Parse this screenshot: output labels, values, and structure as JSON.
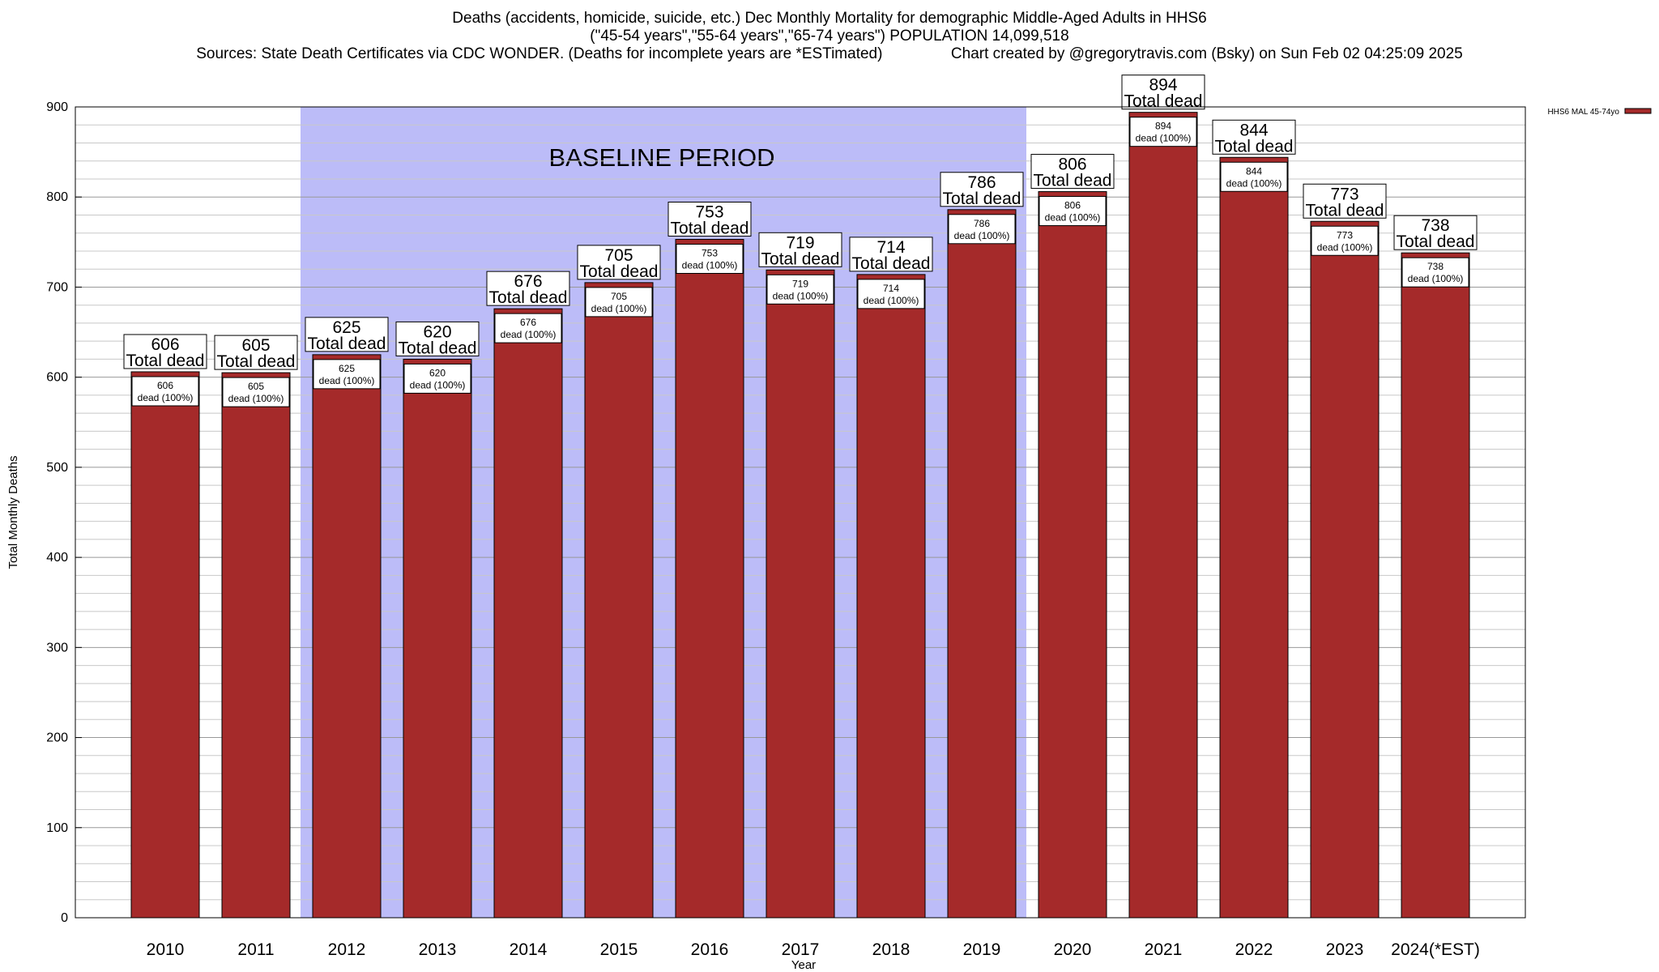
{
  "chart_data": {
    "type": "bar",
    "title_lines": [
      "Deaths (accidents, homicide, suicide, etc.) Dec Monthly Mortality for demographic Middle-Aged Adults in HHS6",
      "(\"45-54 years\",\"55-64 years\",\"65-74 years\") POPULATION 14,099,518"
    ],
    "sources_text": "Sources: State Death Certificates via CDC WONDER. (Deaths for incomplete years are *ESTimated)",
    "credit_text": "Chart created by @gregorytravis.com (Bsky) on Sun Feb 02 04:25:09 2025",
    "xlabel": "Year",
    "ylabel": "Total Monthly Deaths",
    "ylim": [
      0,
      900
    ],
    "yticks": [
      0,
      100,
      200,
      300,
      400,
      500,
      600,
      700,
      800,
      900
    ],
    "categories": [
      "2010",
      "2011",
      "2012",
      "2013",
      "2014",
      "2015",
      "2016",
      "2017",
      "2018",
      "2019",
      "2020",
      "2021",
      "2022",
      "2023",
      "2024(*EST)"
    ],
    "series": [
      {
        "name": "HHS6 MAL 45-74yo",
        "color": "#a52a2a",
        "values": [
          606,
          605,
          625,
          620,
          676,
          705,
          753,
          719,
          714,
          786,
          806,
          894,
          844,
          773,
          738
        ]
      }
    ],
    "total_label_suffix": "Total dead",
    "segment_label_suffix": "dead (100%)",
    "baseline": {
      "label": "BASELINE PERIOD",
      "start_category": "2012",
      "end_category": "2019",
      "color": "#bcbcf8"
    },
    "grid": true,
    "legend_position": "top-right"
  }
}
